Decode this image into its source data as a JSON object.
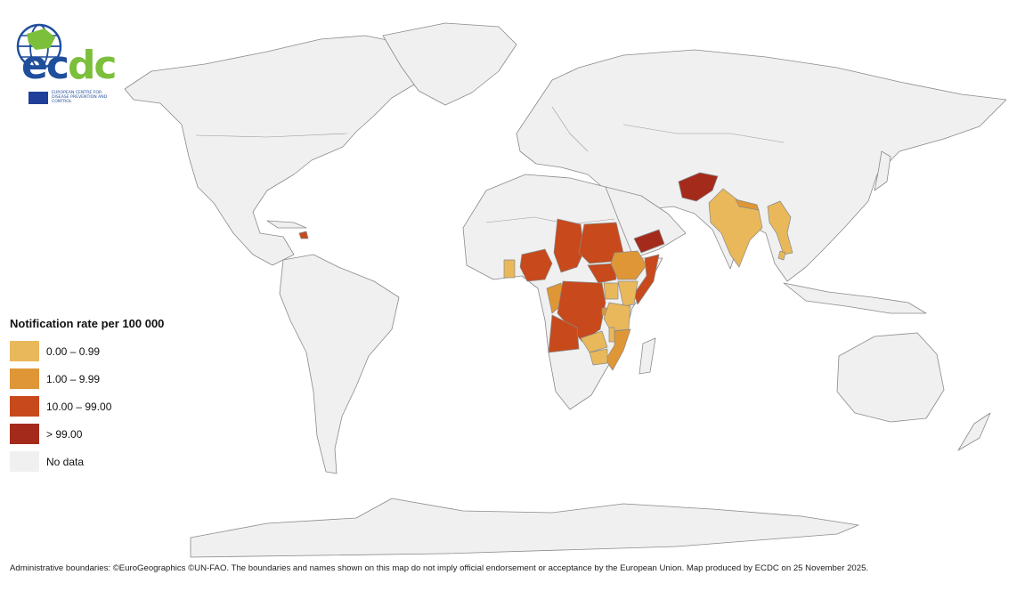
{
  "legend": {
    "title": "Notification rate per 100 000",
    "items": [
      {
        "label": "0.00 – 0.99",
        "color": "#e9b85a"
      },
      {
        "label": "1.00 – 9.99",
        "color": "#df9636"
      },
      {
        "label": "10.00 – 99.00",
        "color": "#c8491b"
      },
      {
        "label": "> 99.00",
        "color": "#a42b1c"
      },
      {
        "label": "No data",
        "color": "#f0f0f0"
      }
    ]
  },
  "logo": {
    "text_part1": "ec",
    "text_part2": "dc",
    "subtitle": "EUROPEAN CENTRE FOR DISEASE PREVENTION AND CONTROL"
  },
  "footer": {
    "text": "Administrative boundaries: ©EuroGeographics ©UN-FAO. The boundaries and names shown on this map do not imply official endorsement or acceptance by the European Union. Map produced by ECDC on 25 November 2025."
  },
  "countries": [
    {
      "name": "Afghanistan",
      "class": "> 99.00"
    },
    {
      "name": "Yemen",
      "class": "> 99.00"
    },
    {
      "name": "Haiti",
      "class": "10.00 – 99.00"
    },
    {
      "name": "Nigeria",
      "class": "10.00 – 99.00"
    },
    {
      "name": "Chad",
      "class": "10.00 – 99.00"
    },
    {
      "name": "Sudan",
      "class": "10.00 – 99.00"
    },
    {
      "name": "South Sudan",
      "class": "10.00 – 99.00"
    },
    {
      "name": "Democratic Republic of the Congo",
      "class": "10.00 – 99.00"
    },
    {
      "name": "Angola",
      "class": "10.00 – 99.00"
    },
    {
      "name": "Somalia",
      "class": "10.00 – 99.00"
    },
    {
      "name": "Ethiopia",
      "class": "1.00 – 9.99"
    },
    {
      "name": "Mozambique",
      "class": "1.00 – 9.99"
    },
    {
      "name": "Congo",
      "class": "1.00 – 9.99"
    },
    {
      "name": "Nepal",
      "class": "1.00 – 9.99"
    },
    {
      "name": "Burundi",
      "class": "1.00 – 9.99"
    },
    {
      "name": "India",
      "class": "0.00 – 0.99"
    },
    {
      "name": "Myanmar",
      "class": "0.00 – 0.99"
    },
    {
      "name": "Ghana",
      "class": "0.00 – 0.99"
    },
    {
      "name": "Kenya",
      "class": "0.00 – 0.99"
    },
    {
      "name": "Uganda",
      "class": "0.00 – 0.99"
    },
    {
      "name": "Tanzania",
      "class": "0.00 – 0.99"
    },
    {
      "name": "Zambia",
      "class": "0.00 – 0.99"
    },
    {
      "name": "Zimbabwe",
      "class": "0.00 – 0.99"
    },
    {
      "name": "Malawi",
      "class": "0.00 – 0.99"
    },
    {
      "name": "Thailand",
      "class": "0.00 – 0.99"
    }
  ]
}
